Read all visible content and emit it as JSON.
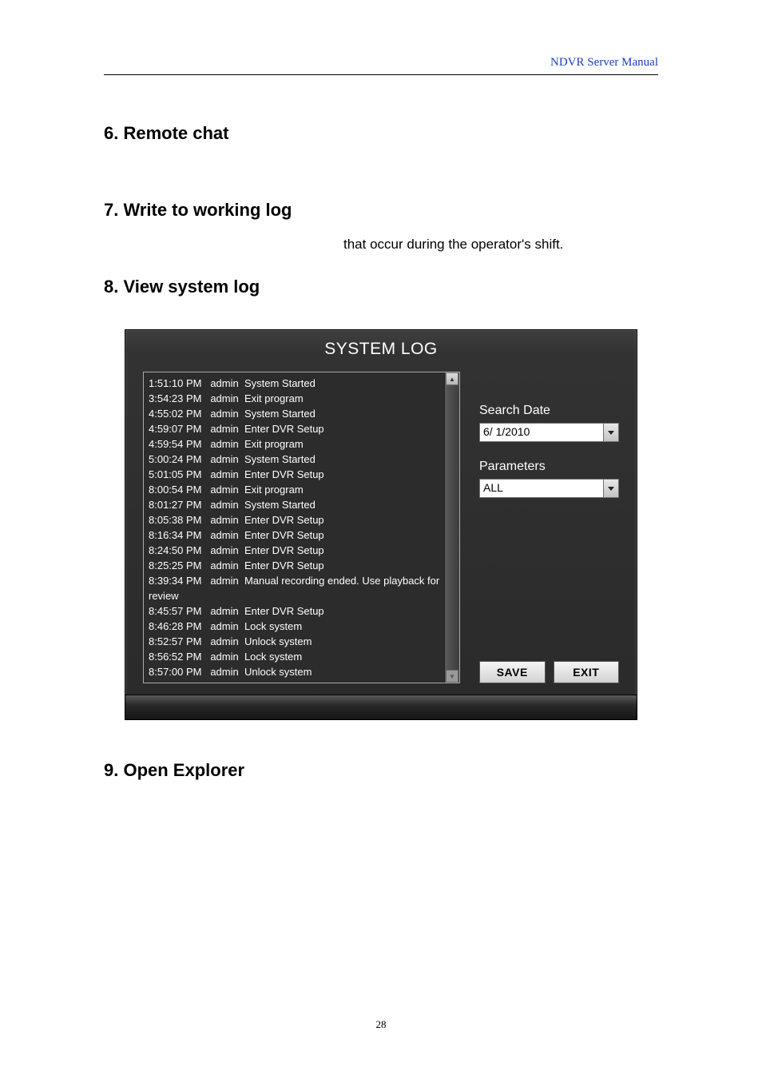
{
  "header": {
    "label": "NDVR Server Manual"
  },
  "sections": {
    "s6": "6. Remote chat",
    "s7": "7. Write to working log",
    "s7_body": "that occur during the operator's shift.",
    "s8": "8. View system log",
    "s9": "9. Open Explorer"
  },
  "page_number": "28",
  "syslog": {
    "title": "SYSTEM LOG",
    "entries": [
      "1:51:10 PM   admin  System Started",
      "3:54:23 PM   admin  Exit program",
      "4:55:02 PM   admin  System Started",
      "4:59:07 PM   admin  Enter DVR Setup",
      "4:59:54 PM   admin  Exit program",
      "5:00:24 PM   admin  System Started",
      "5:01:05 PM   admin  Enter DVR Setup",
      "8:00:54 PM   admin  Exit program",
      "8:01:27 PM   admin  System Started",
      "8:05:38 PM   admin  Enter DVR Setup",
      "8:16:34 PM   admin  Enter DVR Setup",
      "8:24:50 PM   admin  Enter DVR Setup",
      "8:25:25 PM   admin  Enter DVR Setup",
      "8:39:34 PM   admin  Manual recording ended. Use playback for review",
      "8:45:57 PM   admin  Enter DVR Setup",
      "8:46:28 PM   admin  Lock system",
      "8:52:57 PM   admin  Unlock system",
      "8:56:52 PM   admin  Lock system",
      "8:57:00 PM   admin  Unlock system"
    ],
    "search_date_label": "Search Date",
    "search_date_value": " 6/ 1/2010",
    "parameters_label": "Parameters",
    "parameters_value": "ALL",
    "save_label": "SAVE",
    "exit_label": "EXIT",
    "colors": {
      "app_bg": "#2a2a2a",
      "text": "#ffffff",
      "panel_border": "#aaaaaa",
      "btn_face_top": "#f5f5f5",
      "btn_face_bot": "#d2d2d2",
      "dropdown_bg": "#ffffff",
      "header_link": "#1a3fbf"
    },
    "fonts": {
      "title_size_pt": 16,
      "log_size_pt": 10,
      "label_size_pt": 12,
      "btn_size_pt": 11
    }
  }
}
